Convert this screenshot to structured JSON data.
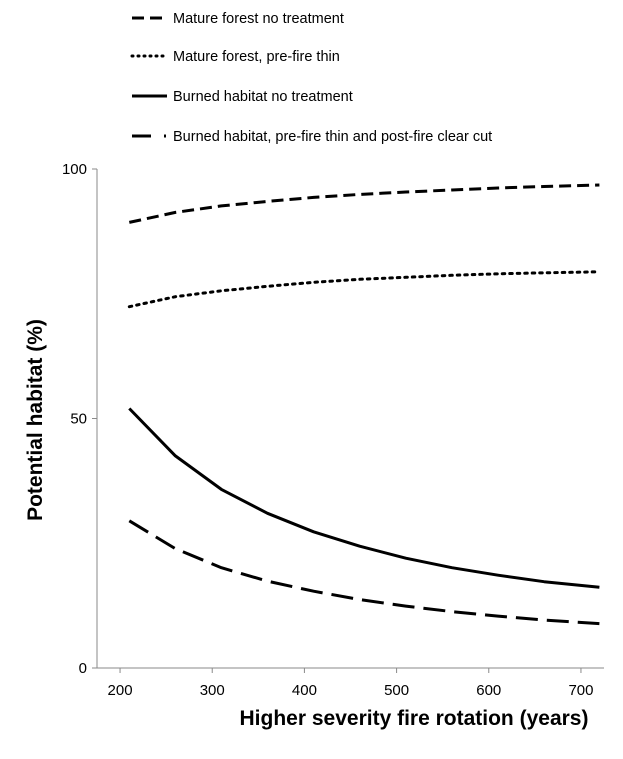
{
  "chart_data": {
    "type": "line",
    "title": "",
    "xlabel": "Higher severity fire rotation (years)",
    "ylabel": "Potential habitat (%)",
    "xlim": [
      175,
      725
    ],
    "ylim": [
      0,
      100
    ],
    "xticks": [
      200,
      300,
      400,
      500,
      600,
      700
    ],
    "yticks": [
      0,
      50,
      100
    ],
    "grid": false,
    "legend_position": "top",
    "series": [
      {
        "name": "Mature forest no treatment",
        "style": "dashed",
        "x": [
          210,
          260,
          310,
          360,
          410,
          460,
          510,
          560,
          610,
          660,
          720
        ],
        "y": [
          89.3,
          91.3,
          92.6,
          93.5,
          94.3,
          94.9,
          95.4,
          95.8,
          96.2,
          96.5,
          96.8
        ]
      },
      {
        "name": "Mature forest, pre-fire thin",
        "style": "dotted",
        "x": [
          210,
          260,
          310,
          360,
          410,
          460,
          510,
          560,
          610,
          660,
          720
        ],
        "y": [
          72.4,
          74.4,
          75.6,
          76.5,
          77.3,
          77.9,
          78.3,
          78.7,
          79.0,
          79.2,
          79.4
        ]
      },
      {
        "name": "Burned habitat no treatment",
        "style": "solid",
        "x": [
          210,
          260,
          310,
          360,
          410,
          460,
          510,
          560,
          610,
          660,
          720
        ],
        "y": [
          52.0,
          42.5,
          35.8,
          31.0,
          27.3,
          24.4,
          22.0,
          20.1,
          18.6,
          17.3,
          16.2
        ]
      },
      {
        "name": "Burned habitat, pre-fire thin and post-fire clear cut",
        "style": "long-dash",
        "x": [
          210,
          260,
          310,
          360,
          410,
          460,
          510,
          560,
          610,
          660,
          720
        ],
        "y": [
          29.5,
          23.9,
          20.1,
          17.4,
          15.4,
          13.7,
          12.4,
          11.3,
          10.4,
          9.6,
          8.9
        ]
      }
    ]
  }
}
